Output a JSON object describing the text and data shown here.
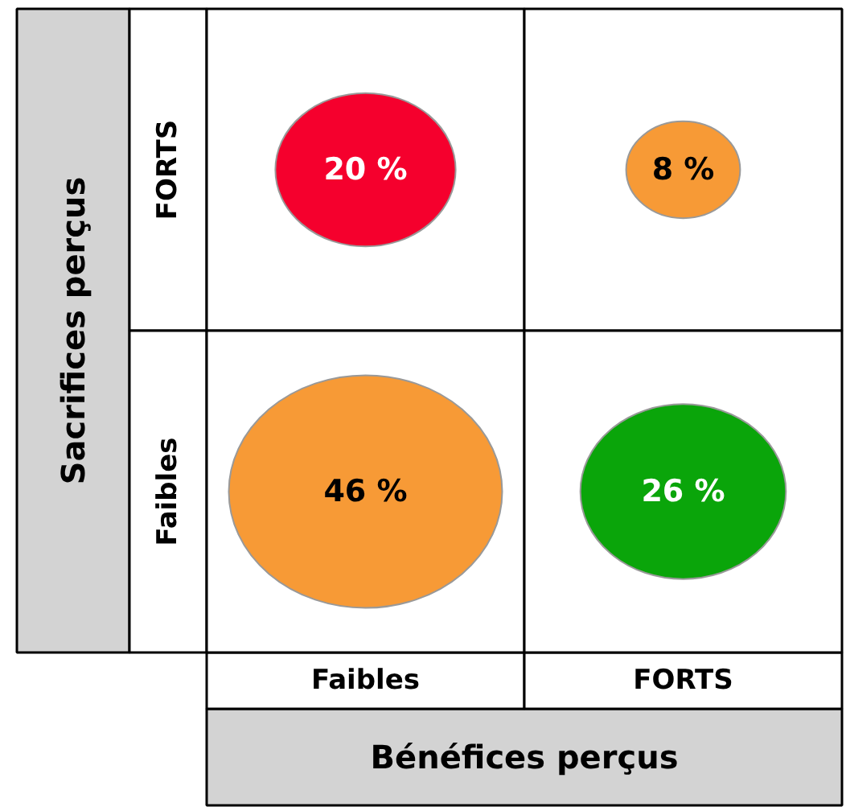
{
  "chart_data": {
    "type": "other",
    "xlabel": "Bénéfices perçus",
    "ylabel": "Sacrifices perçus",
    "categories": [
      "Faibles",
      "FORTS"
    ],
    "y_categories": [
      "FORTS",
      "Faibles"
    ],
    "series": [
      {
        "values": [
          20,
          8
        ],
        "value_labels": [
          "20 %",
          "8 %"
        ],
        "colors": [
          "#f5002d",
          "#f79a36"
        ]
      },
      {
        "values": [
          46,
          26
        ],
        "value_labels": [
          "46 %",
          "26 %"
        ],
        "colors": [
          "#f79a36",
          "#0aa50a"
        ]
      }
    ]
  }
}
